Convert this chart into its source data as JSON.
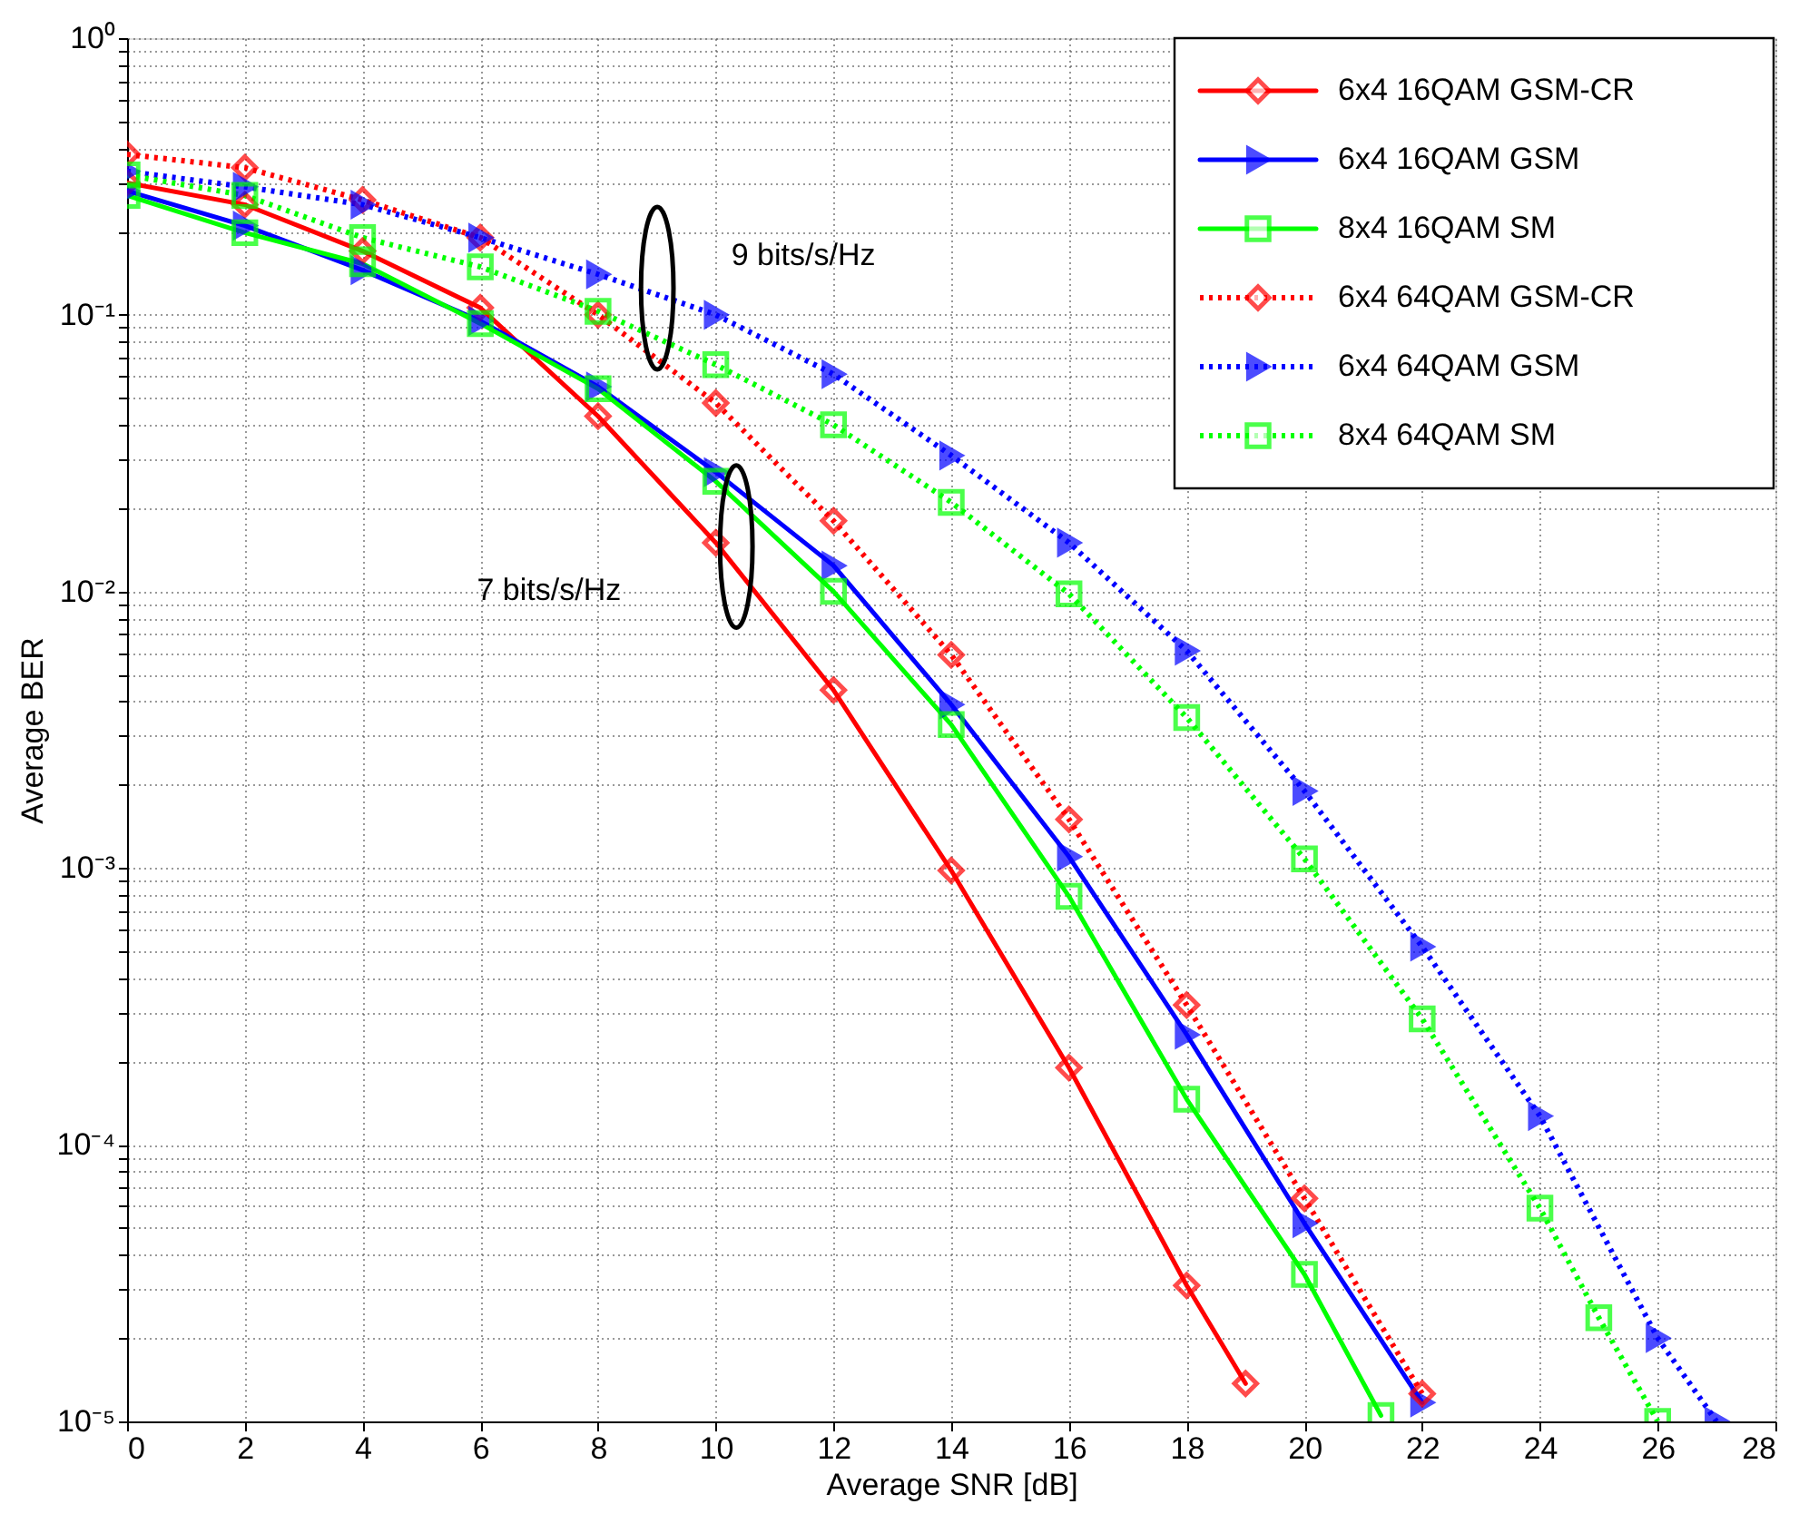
{
  "chart_data": {
    "type": "line",
    "xlabel": "Average SNR [dB]",
    "ylabel": "Average BER",
    "log": "y",
    "grid": true,
    "legend": "top right",
    "xlim": [
      0,
      28
    ],
    "xticks": [
      0,
      2,
      4,
      6,
      8,
      10,
      12,
      14,
      16,
      18,
      20,
      22,
      24,
      26,
      28
    ],
    "ylim": [
      1e-05,
      1
    ],
    "yticks": [
      {
        "value": 1e-05,
        "label": "10⁻⁵"
      },
      {
        "value": 2e-05,
        "label": null
      },
      {
        "value": 3e-05,
        "label": null
      },
      {
        "value": 4e-05,
        "label": null
      },
      {
        "value": 5e-05,
        "label": null
      },
      {
        "value": 6e-05,
        "label": null
      },
      {
        "value": 7e-05,
        "label": null
      },
      {
        "value": 8e-05,
        "label": null
      },
      {
        "value": 9e-05,
        "label": null
      },
      {
        "value": 0.0001,
        "label": "10⁻⁴"
      },
      {
        "value": 0.0002,
        "label": null
      },
      {
        "value": 0.0003,
        "label": null
      },
      {
        "value": 0.0004,
        "label": null
      },
      {
        "value": 0.0005,
        "label": null
      },
      {
        "value": 0.0006,
        "label": null
      },
      {
        "value": 0.0007,
        "label": null
      },
      {
        "value": 0.0008,
        "label": null
      },
      {
        "value": 0.0009,
        "label": null
      },
      {
        "value": 0.001,
        "label": "10⁻³"
      },
      {
        "value": 0.002,
        "label": null
      },
      {
        "value": 0.003,
        "label": null
      },
      {
        "value": 0.004,
        "label": null
      },
      {
        "value": 0.005,
        "label": null
      },
      {
        "value": 0.006,
        "label": null
      },
      {
        "value": 0.007,
        "label": null
      },
      {
        "value": 0.008,
        "label": null
      },
      {
        "value": 0.009,
        "label": null
      },
      {
        "value": 0.01,
        "label": "10⁻²"
      },
      {
        "value": 0.02,
        "label": null
      },
      {
        "value": 0.03,
        "label": null
      },
      {
        "value": 0.04,
        "label": null
      },
      {
        "value": 0.05,
        "label": null
      },
      {
        "value": 0.06,
        "label": null
      },
      {
        "value": 0.07,
        "label": null
      },
      {
        "value": 0.08,
        "label": null
      },
      {
        "value": 0.09,
        "label": null
      },
      {
        "value": 0.1,
        "label": "10⁻¹"
      },
      {
        "value": 0.2,
        "label": null
      },
      {
        "value": 0.3,
        "label": null
      },
      {
        "value": 0.4,
        "label": null
      },
      {
        "value": 0.5,
        "label": null
      },
      {
        "value": 0.6,
        "label": null
      },
      {
        "value": 0.7,
        "label": null
      },
      {
        "value": 0.8,
        "label": null
      },
      {
        "value": 0.9,
        "label": null
      },
      {
        "value": 1,
        "label": "10⁰"
      }
    ],
    "series": [
      {
        "name": "6x4 16QAM GSM-CR",
        "color": "#ff0000",
        "marker": "diamond",
        "line_style": "solid",
        "x": [
          0,
          2,
          4,
          6,
          8,
          10,
          12,
          14,
          16,
          18,
          19
        ],
        "values": [
          0.3,
          0.25,
          0.17,
          0.106,
          0.043,
          0.015,
          0.0044,
          0.00098,
          0.00019,
          3.1e-05,
          1.37e-05
        ]
      },
      {
        "name": "6x4 16QAM GSM",
        "color": "#0000ff",
        "marker": "triangle",
        "line_style": "solid",
        "x": [
          0,
          2,
          4,
          6,
          8,
          10,
          12,
          14,
          16,
          18,
          20,
          22
        ],
        "values": [
          0.28,
          0.21,
          0.145,
          0.095,
          0.055,
          0.027,
          0.0124,
          0.0039,
          0.0011,
          0.00025,
          5.2e-05,
          1.17e-05
        ]
      },
      {
        "name": "8x4 16QAM SM",
        "color": "#00ff00",
        "marker": "square",
        "line_style": "solid",
        "x": [
          0,
          2,
          4,
          6,
          8,
          10,
          12,
          14,
          16,
          18,
          20,
          21.3
        ],
        "values": [
          0.27,
          0.198,
          0.153,
          0.093,
          0.054,
          0.025,
          0.01,
          0.0033,
          0.00079,
          0.000146,
          3.4e-05,
          1.05e-05
        ]
      },
      {
        "name": "6x4 64QAM GSM-CR",
        "color": "#ff0000",
        "marker": "diamond",
        "line_style": "dotted",
        "x": [
          0,
          2,
          4,
          6,
          8,
          10,
          12,
          14,
          16,
          18,
          20,
          22
        ],
        "values": [
          0.38,
          0.34,
          0.26,
          0.19,
          0.1,
          0.048,
          0.018,
          0.0059,
          0.0015,
          0.00032,
          6.4e-05,
          1.26e-05
        ]
      },
      {
        "name": "6x4 64QAM GSM",
        "color": "#0000ff",
        "marker": "triangle",
        "line_style": "dotted",
        "x": [
          0,
          2,
          4,
          6,
          8,
          10,
          12,
          14,
          16,
          18,
          20,
          22,
          24,
          26,
          27
        ],
        "values": [
          0.33,
          0.29,
          0.25,
          0.19,
          0.14,
          0.1,
          0.061,
          0.031,
          0.015,
          0.0061,
          0.0019,
          0.00052,
          0.000127,
          2e-05,
          1e-05
        ]
      },
      {
        "name": "8x4 64QAM SM",
        "color": "#00ff00",
        "marker": "square",
        "line_style": "dotted",
        "x": [
          0,
          2,
          4,
          6,
          8,
          10,
          12,
          14,
          16,
          18,
          20,
          22,
          24,
          25,
          26
        ],
        "values": [
          0.32,
          0.27,
          0.19,
          0.149,
          0.103,
          0.066,
          0.04,
          0.021,
          0.0098,
          0.0035,
          0.00108,
          0.000285,
          5.9e-05,
          2.37e-05,
          1e-05
        ]
      }
    ],
    "annotations": [
      "9 bits/s/Hz",
      "7 bits/s/Hz"
    ]
  }
}
